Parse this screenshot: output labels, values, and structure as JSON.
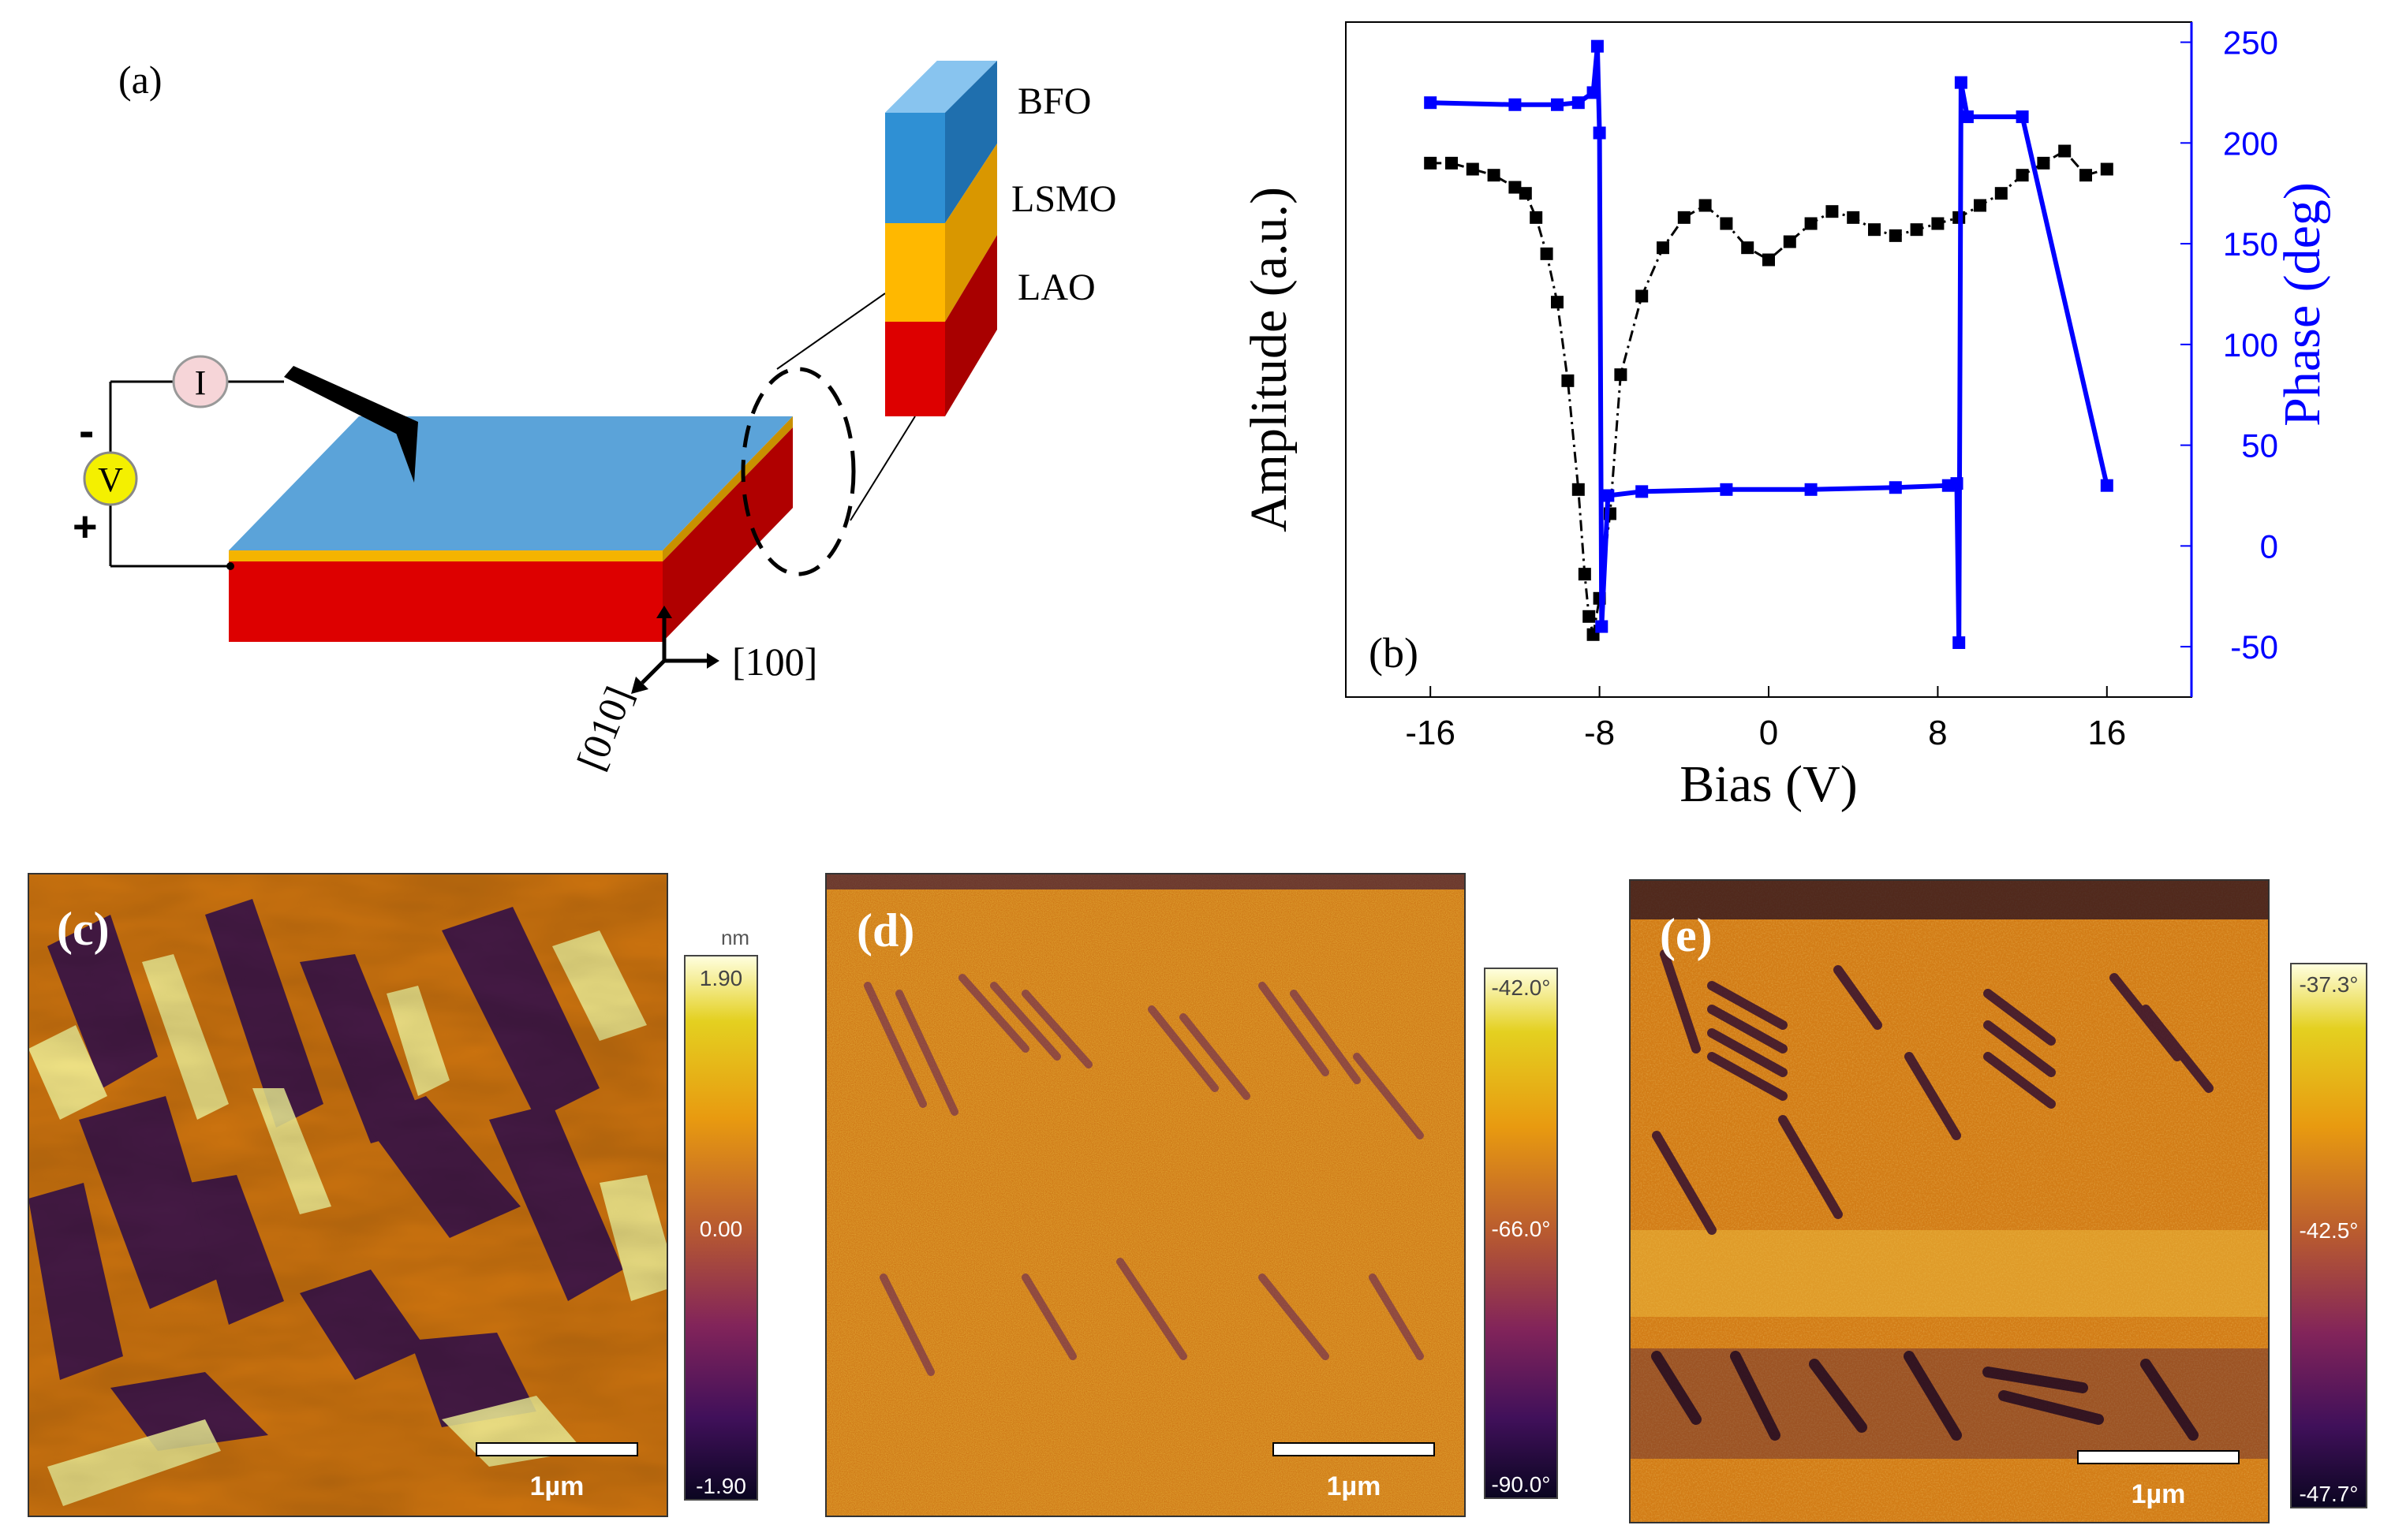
{
  "panel_a": {
    "label": "(a)",
    "layers": [
      "BFO",
      "LSMO",
      "LAO"
    ],
    "current_symbol": "I",
    "voltage_symbol": "V",
    "minus_sign": "-",
    "plus_sign": "+",
    "axis_x": "[100]",
    "axis_y": "[010]",
    "colors": {
      "bfo": "#5ba3d9",
      "lsmo": "#f4b400",
      "lao": "#dd0000"
    }
  },
  "panel_b": {
    "label": "(b)",
    "chart_data": {
      "type": "line",
      "xlabel": "Bias (V)",
      "ylabel_left": "Amplitude (a.u.)",
      "ylabel_right": "Phase (deg)",
      "xlim": [
        -20,
        20
      ],
      "ylim_right": [
        -75,
        260
      ],
      "x_ticks": [
        -16,
        -8,
        0,
        8,
        16
      ],
      "x_tick_labels": [
        "-16",
        "-8",
        "0",
        "8",
        "16"
      ],
      "y_right_ticks": [
        250,
        200,
        150,
        100,
        50,
        0,
        -50
      ],
      "y_right_tick_labels": [
        "250",
        "200",
        "150",
        "100",
        "50",
        "0",
        "-50"
      ],
      "series": [
        {
          "name": "Amplitude",
          "color": "#000000",
          "style": "dash-dot with square markers",
          "x": [
            -16,
            -15,
            -14,
            -13,
            -12,
            -11.5,
            -11,
            -10.5,
            -10,
            -9.5,
            -9,
            -8.7,
            -8.5,
            -8.3,
            -8,
            -7.5,
            -7,
            -6,
            -5,
            -4,
            -3,
            -2,
            -1,
            0,
            1,
            2,
            3,
            4,
            5,
            6,
            7,
            8,
            9,
            10,
            11,
            12,
            13,
            14,
            15,
            16
          ],
          "y": [
            0.8,
            0.8,
            0.79,
            0.78,
            0.76,
            0.75,
            0.71,
            0.65,
            0.57,
            0.44,
            0.26,
            0.12,
            0.05,
            0.02,
            0.08,
            0.22,
            0.45,
            0.58,
            0.66,
            0.71,
            0.73,
            0.7,
            0.66,
            0.64,
            0.67,
            0.7,
            0.72,
            0.71,
            0.69,
            0.68,
            0.69,
            0.7,
            0.71,
            0.73,
            0.75,
            0.78,
            0.8,
            0.82,
            0.78,
            0.79
          ]
        },
        {
          "name": "Phase",
          "color": "#0000ff",
          "style": "line with square markers",
          "x": [
            -16,
            -12,
            -10,
            -9,
            -8.3,
            -8.1,
            -8.0,
            -7.9,
            -7.6,
            -6,
            -2,
            2,
            6,
            8.5,
            8.9,
            9.0,
            9.1,
            9.4,
            12,
            16
          ],
          "y": [
            220,
            219,
            219,
            220,
            225,
            248,
            205,
            -40,
            25,
            27,
            28,
            28,
            29,
            30,
            31,
            -48,
            230,
            213,
            213,
            30
          ]
        }
      ]
    }
  },
  "panel_c": {
    "label": "(c)",
    "scale_bar": "1µm",
    "colorbar_unit": "nm",
    "colorbar_max": "1.90",
    "colorbar_mid": "0.00",
    "colorbar_min": "-1.90"
  },
  "panel_d": {
    "label": "(d)",
    "scale_bar": "1µm",
    "colorbar_max": "-42.0°",
    "colorbar_mid": "-66.0°",
    "colorbar_min": "-90.0°"
  },
  "panel_e": {
    "label": "(e)",
    "scale_bar": "1µm",
    "colorbar_max": "-37.3°",
    "colorbar_mid": "-42.5°",
    "colorbar_min": "-47.7°"
  }
}
